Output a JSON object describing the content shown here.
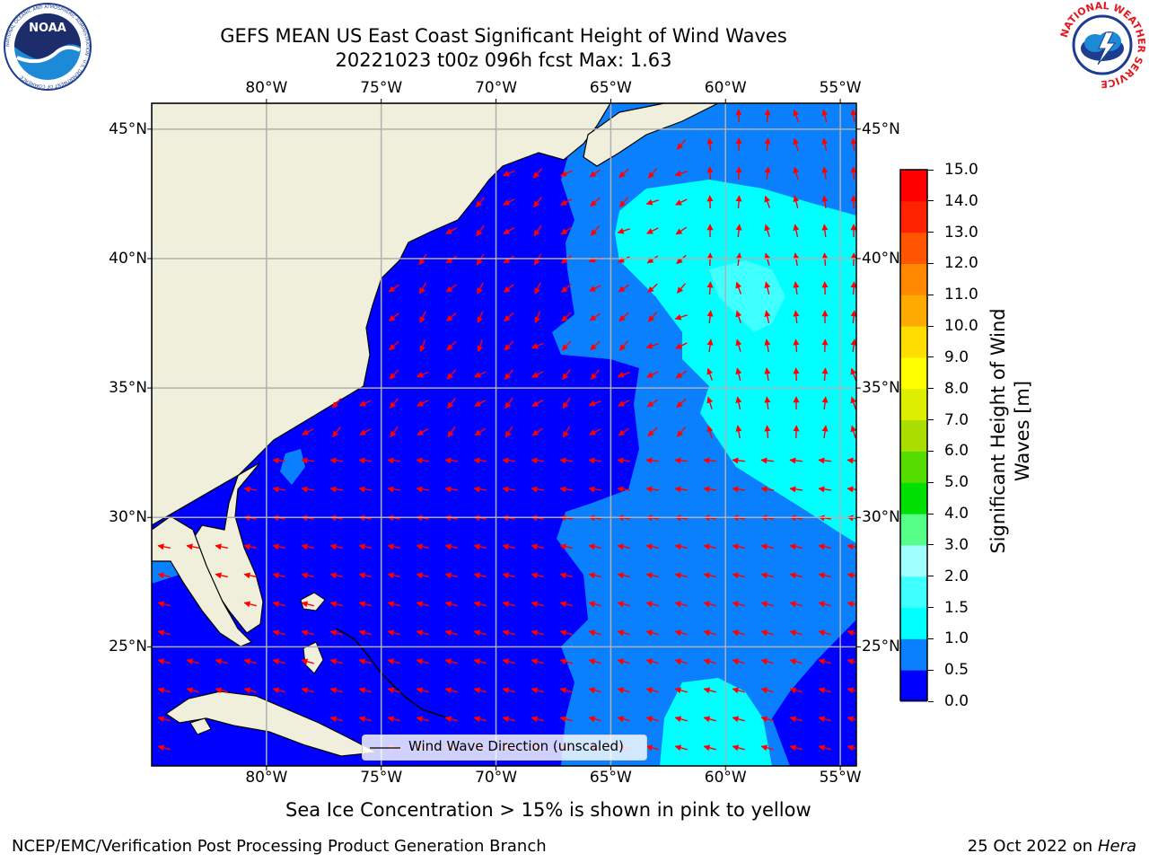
{
  "header": {
    "title_line1": "GEFS MEAN US East Coast Significant Height of Wind Waves",
    "title_line2": "20221023 t00z 096h fcst   Max: 1.63"
  },
  "logos": {
    "left": {
      "name": "noaa-logo",
      "text": "NOAA",
      "ring_text": "NATIONAL OCEANIC AND ATMOSPHERIC ADMINISTRATION · U.S. DEPARTMENT OF COMMERCE"
    },
    "right": {
      "name": "nws-logo",
      "ring_text": "NATIONAL WEATHER SERVICE"
    }
  },
  "map": {
    "lon_labels": [
      "80°W",
      "75°W",
      "70°W",
      "65°W",
      "60°W",
      "55°W"
    ],
    "lat_labels": [
      "45°N",
      "40°N",
      "35°N",
      "30°N",
      "25°N"
    ],
    "lon_values": [
      -80,
      -75,
      -70,
      -65,
      -60,
      -55
    ],
    "lat_values": [
      45,
      40,
      35,
      30,
      25
    ],
    "extent": {
      "lon": [
        -85,
        -54.3
      ],
      "lat": [
        20.4,
        46
      ]
    },
    "gridlines": true,
    "legend": {
      "label": "Wind Wave Direction (unscaled)",
      "placement": "bottom-center"
    },
    "colors": {
      "land": "#efefdc",
      "coast": "#000000",
      "arrow": "#ff0000",
      "grid": "#b0b0b0"
    }
  },
  "colorbar": {
    "label_line1": "Significant Height of Wind",
    "label_line2": "Waves [m]",
    "ticks": [
      "0.0",
      "0.5",
      "1.0",
      "1.5",
      "2.0",
      "3.0",
      "4.0",
      "5.0",
      "6.0",
      "7.0",
      "8.0",
      "9.0",
      "10.0",
      "11.0",
      "12.0",
      "13.0",
      "14.0",
      "15.0"
    ],
    "colors": [
      "#0000ff",
      "#0a80ff",
      "#00ffff",
      "#40ffff",
      "#a0ffff",
      "#55ff88",
      "#00e000",
      "#55dd00",
      "#aadd00",
      "#ddee00",
      "#ffff00",
      "#ffdd00",
      "#ffaa00",
      "#ff8800",
      "#ff5500",
      "#ff2200",
      "#ff0000"
    ]
  },
  "chart_data": {
    "type": "heatmap",
    "variable": "Significant Height of Wind Waves",
    "units": "m",
    "max": 1.63,
    "x_range": [
      -85,
      -54.3
    ],
    "y_range": [
      20.4,
      46
    ],
    "levels": [
      0.0,
      0.5,
      1.0,
      1.5,
      2.0,
      3.0,
      4.0,
      5.0,
      6.0,
      7.0,
      8.0,
      9.0,
      10.0,
      11.0,
      12.0,
      13.0,
      14.0,
      15.0
    ]
  },
  "footer": {
    "note": "Sea Ice Concentration > 15% is shown in pink to yellow",
    "credit": "NCEP/EMC/Verification Post Processing Product Generation Branch",
    "date": "25 Oct 2022 on ",
    "machine": "Hera"
  }
}
